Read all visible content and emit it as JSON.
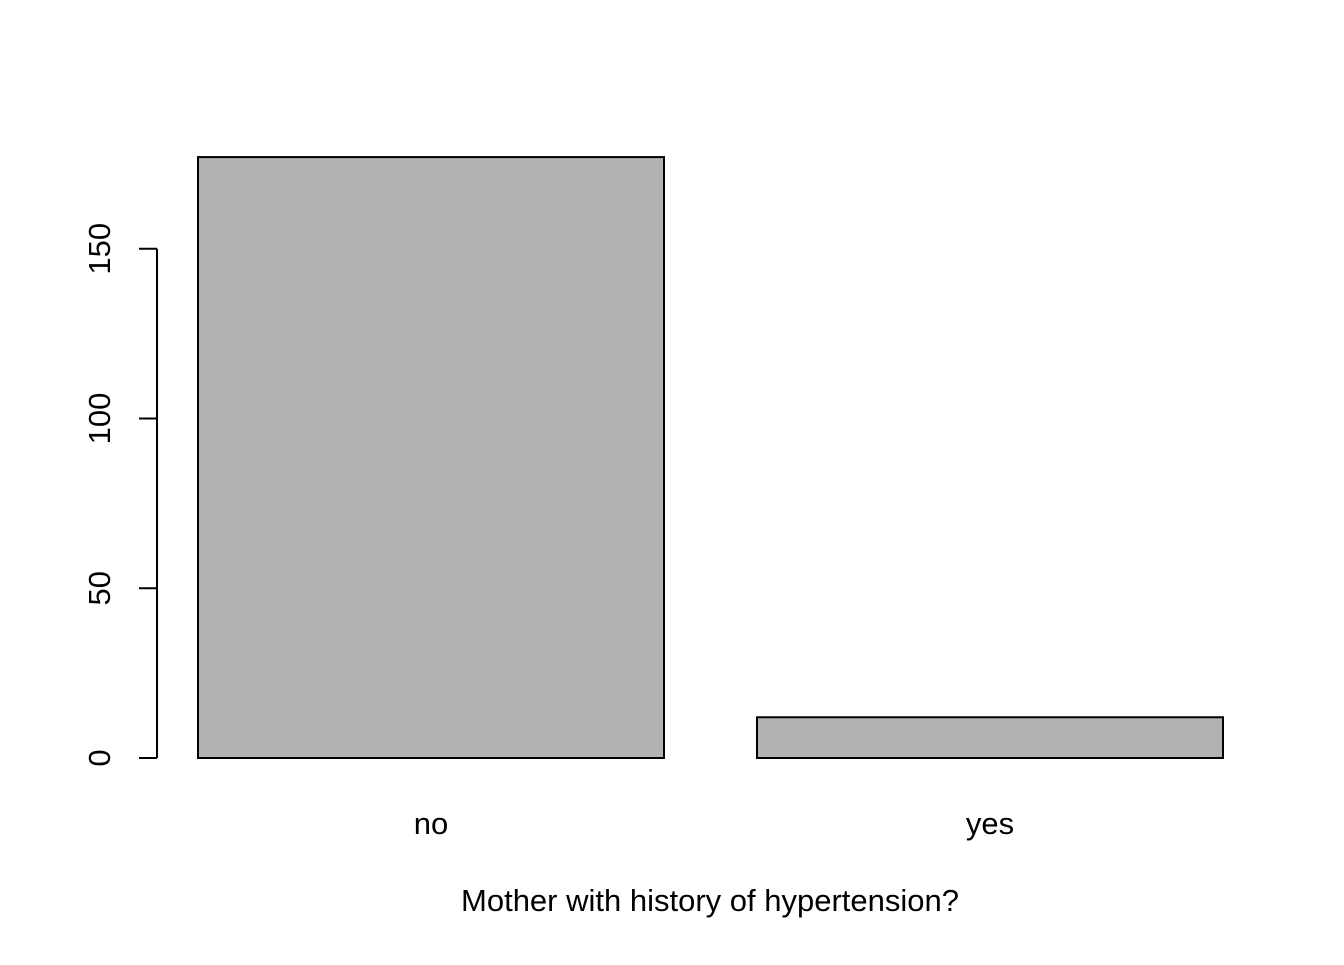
{
  "chart_data": {
    "type": "bar",
    "title": "",
    "xlabel": "Mother with history of hypertension?",
    "ylabel": "",
    "categories": [
      "no",
      "yes"
    ],
    "values": [
      177,
      12
    ],
    "ylim": [
      0,
      177
    ],
    "y_ticks": [
      0,
      50,
      100,
      150
    ],
    "y_tick_labels": [
      "0",
      "50",
      "100",
      "150"
    ],
    "grid": false,
    "legend": "none",
    "colors": {
      "bar_fill": "#b2b2b2",
      "bar_stroke": "#000000",
      "axis": "#000000",
      "background": "#ffffff"
    }
  }
}
